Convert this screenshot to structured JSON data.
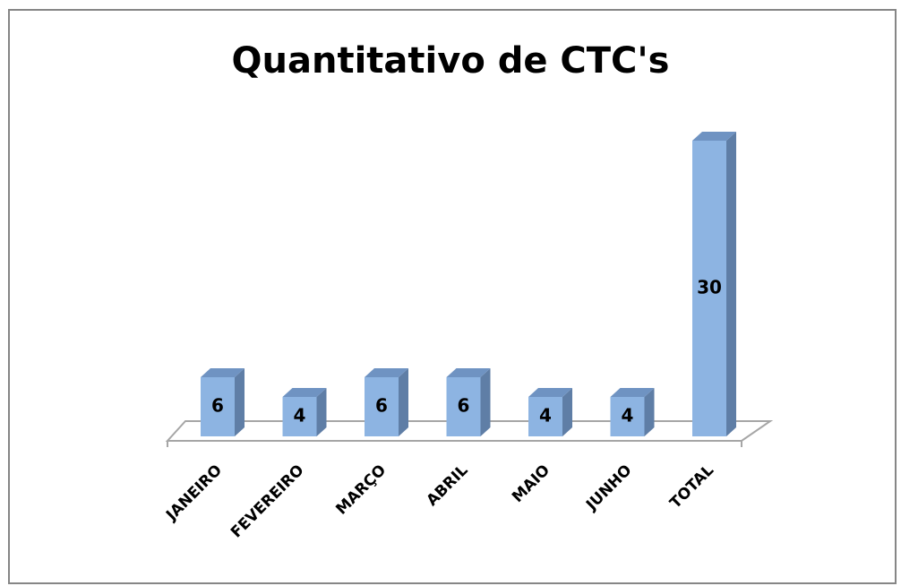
{
  "chart_data": {
    "type": "bar3d",
    "title": "Quantitativo de CTC's",
    "categories": [
      "JANEIRO",
      "FEVEREIRO",
      "MARÇO",
      "ABRIL",
      "MAIO",
      "JUNHO",
      "TOTAL"
    ],
    "values": [
      6,
      4,
      6,
      6,
      4,
      4,
      30
    ],
    "color": "#8db4e2"
  }
}
